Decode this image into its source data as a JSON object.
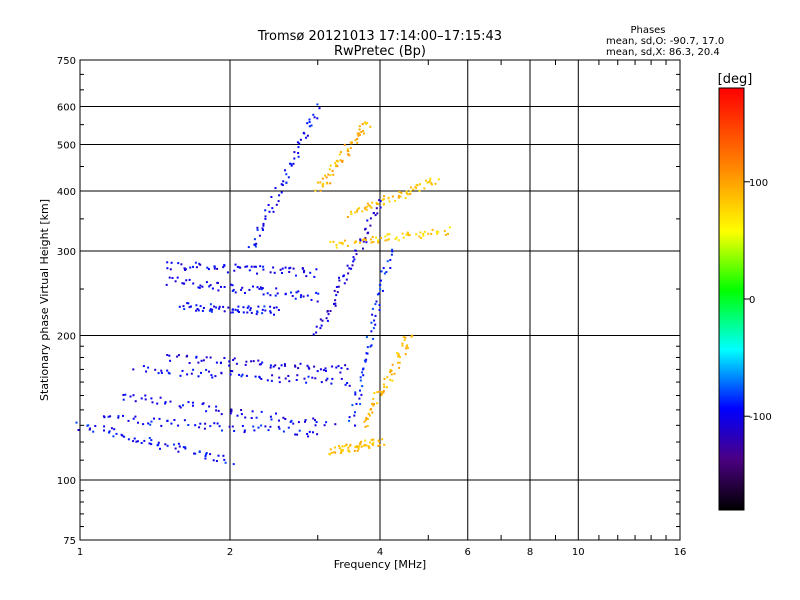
{
  "chart_data": {
    "type": "scatter",
    "title": "Tromsø 20121013 17:14:00–17:15:43",
    "subtitle": "RwPretec (Bp)",
    "xlabel": "Frequency [MHz]",
    "ylabel": "Stationary phase Virtual Height [km]",
    "x_scale": "log",
    "y_scale": "log",
    "xlim": [
      1,
      16
    ],
    "ylim": [
      75,
      750
    ],
    "x_ticks": [
      1,
      2,
      4,
      6,
      8,
      10,
      16
    ],
    "x_tick_labels": [
      "1",
      "2",
      "4",
      "6",
      "8",
      "10",
      "16"
    ],
    "y_ticks": [
      75,
      100,
      200,
      300,
      400,
      500,
      600,
      750
    ],
    "y_tick_labels": [
      "75",
      "100",
      "200",
      "300",
      "400",
      "500",
      "600",
      "750"
    ],
    "grid": true,
    "stats": {
      "title": "Phases",
      "line_O": "mean, sd,O: -90.7, 17.0",
      "line_X": "mean, sd,X:  86.3, 20.4"
    },
    "colorbar": {
      "label": "[deg]",
      "range": [
        -180,
        180
      ],
      "ticks": [
        100,
        0,
        -100
      ],
      "tick_labels": [
        "100",
        "0",
        "-100"
      ],
      "colormap": [
        "#000000",
        "#4b0082",
        "#0000ff",
        "#00ffff",
        "#00ff00",
        "#ffff00",
        "#ff8000",
        "#ff0000"
      ]
    },
    "series": [
      {
        "description": "O-mode traces (phase ~ -90 deg)",
        "traces": [
          {
            "x": [
              1.0,
              2.0
            ],
            "y": [
              130,
              110
            ],
            "phase": -95
          },
          {
            "x": [
              1.1,
              3.0
            ],
            "y": [
              135,
              125
            ],
            "phase": -95
          },
          {
            "x": [
              1.2,
              3.2
            ],
            "y": [
              150,
              130
            ],
            "phase": -100
          },
          {
            "x": [
              1.3,
              3.5
            ],
            "y": [
              170,
              160
            ],
            "phase": -100
          },
          {
            "x": [
              1.5,
              3.5
            ],
            "y": [
              180,
              170
            ],
            "phase": -105
          },
          {
            "x": [
              1.5,
              3.0
            ],
            "y": [
              260,
              240
            ],
            "phase": -100
          },
          {
            "x": [
              1.5,
              3.0
            ],
            "y": [
              280,
              270
            ],
            "phase": -100
          },
          {
            "x": [
              1.6,
              2.5
            ],
            "y": [
              230,
              225
            ],
            "phase": -95
          },
          {
            "x": [
              3.0,
              4.0
            ],
            "y": [
              200,
              380
            ],
            "phase": -110
          },
          {
            "x": [
              3.5,
              4.2
            ],
            "y": [
              130,
              300
            ],
            "phase": -90
          },
          {
            "x": [
              2.2,
              3.0
            ],
            "y": [
              300,
              600
            ],
            "phase": -95
          }
        ]
      },
      {
        "description": "X-mode traces (phase ~ +90 deg)",
        "traces": [
          {
            "x": [
              3.2,
              4.0
            ],
            "y": [
              115,
              120
            ],
            "phase": 85
          },
          {
            "x": [
              3.7,
              4.6
            ],
            "y": [
              130,
              200
            ],
            "phase": 90
          },
          {
            "x": [
              3.5,
              5.2
            ],
            "y": [
              360,
              420
            ],
            "phase": 85
          },
          {
            "x": [
              3.2,
              5.5
            ],
            "y": [
              310,
              330
            ],
            "phase": 80
          },
          {
            "x": [
              3.0,
              3.8
            ],
            "y": [
              400,
              560
            ],
            "phase": 90
          }
        ]
      }
    ]
  }
}
